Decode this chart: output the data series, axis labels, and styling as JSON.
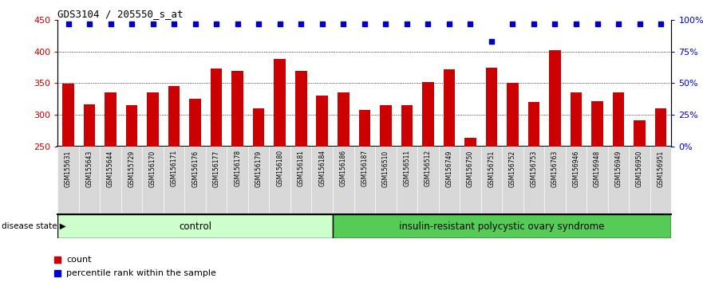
{
  "title": "GDS3104 / 205550_s_at",
  "samples": [
    "GSM155631",
    "GSM155643",
    "GSM155644",
    "GSM155729",
    "GSM156170",
    "GSM156171",
    "GSM156176",
    "GSM156177",
    "GSM156178",
    "GSM156179",
    "GSM156180",
    "GSM156181",
    "GSM156184",
    "GSM156186",
    "GSM156187",
    "GSM156510",
    "GSM156511",
    "GSM156512",
    "GSM156749",
    "GSM156750",
    "GSM156751",
    "GSM156752",
    "GSM156753",
    "GSM156763",
    "GSM156946",
    "GSM156948",
    "GSM156949",
    "GSM156950",
    "GSM156951"
  ],
  "counts": [
    349,
    317,
    335,
    316,
    336,
    345,
    325,
    373,
    369,
    310,
    388,
    369,
    330,
    335,
    308,
    315,
    315,
    352,
    372,
    264,
    375,
    351,
    320,
    402,
    335,
    322,
    335,
    291,
    310
  ],
  "percentile_ranks": [
    97,
    97,
    97,
    97,
    97,
    97,
    97,
    97,
    97,
    97,
    97,
    97,
    97,
    97,
    97,
    97,
    97,
    97,
    97,
    97,
    83,
    97,
    97,
    97,
    97,
    97,
    97,
    97,
    97
  ],
  "control_count": 13,
  "disease_count": 16,
  "bar_color": "#cc0000",
  "dot_color": "#0000cc",
  "ylim_left": [
    250,
    450
  ],
  "ylim_right": [
    0,
    100
  ],
  "yticks_left": [
    250,
    300,
    350,
    400,
    450
  ],
  "yticks_right": [
    0,
    25,
    50,
    75,
    100
  ],
  "ytick_labels_right": [
    "0%",
    "25%",
    "50%",
    "75%",
    "100%"
  ],
  "grid_values": [
    300,
    350,
    400
  ],
  "plot_bg_color": "#ffffff",
  "tick_bg_color": "#d8d8d8",
  "control_color": "#ccffcc",
  "disease_color": "#55cc55",
  "label_count": "count",
  "label_percentile": "percentile rank within the sample",
  "disease_state_label": "disease state",
  "control_label": "control",
  "disease_label": "insulin-resistant polycystic ovary syndrome"
}
